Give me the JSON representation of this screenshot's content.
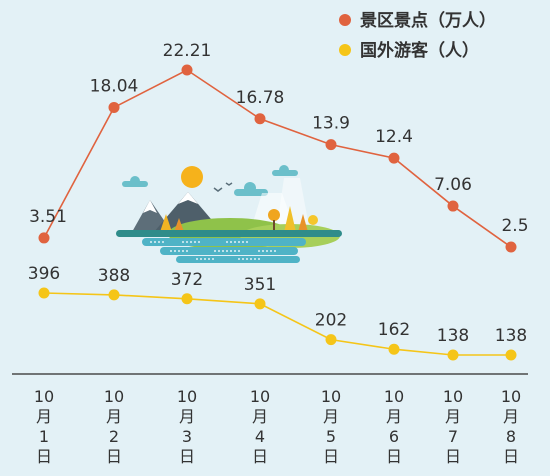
{
  "chart_data": {
    "type": "line",
    "categories": [
      [
        "10",
        "月",
        "1",
        "日"
      ],
      [
        "10",
        "月",
        "2",
        "日"
      ],
      [
        "10",
        "月",
        "3",
        "日"
      ],
      [
        "10",
        "月",
        "4",
        "日"
      ],
      [
        "10",
        "月",
        "5",
        "日"
      ],
      [
        "10",
        "月",
        "6",
        "日"
      ],
      [
        "10",
        "月",
        "7",
        "日"
      ],
      [
        "10",
        "月",
        "8",
        "日"
      ]
    ],
    "series": [
      {
        "name": "景区景点（万人）",
        "color": "#e0633f",
        "values": [
          3.51,
          18.04,
          22.21,
          16.78,
          13.9,
          12.4,
          7.06,
          2.5
        ],
        "labels": [
          "3.51",
          "18.04",
          "22.21",
          "16.78",
          "13.9",
          "12.4",
          "7.06",
          "2.5"
        ]
      },
      {
        "name": "国外游客（人）",
        "color": "#f5c518",
        "values": [
          396,
          388,
          372,
          351,
          202,
          162,
          138,
          138
        ],
        "labels": [
          "396",
          "388",
          "372",
          "351",
          "202",
          "162",
          "138",
          "138"
        ]
      }
    ],
    "legend_position": "top-right",
    "grid": false,
    "background": "#e3f1f6"
  }
}
